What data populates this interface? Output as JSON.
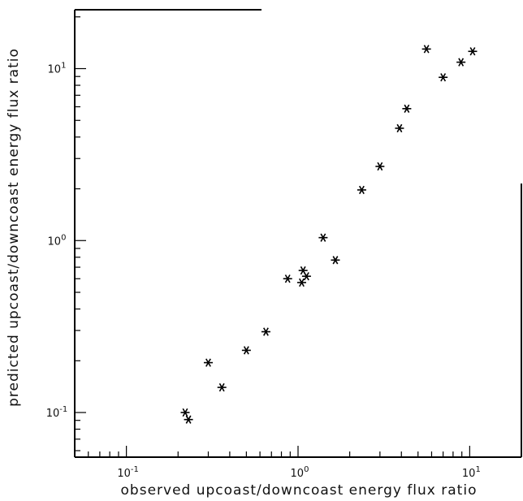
{
  "chart_data": {
    "type": "scatter",
    "xscale": "log",
    "yscale": "log",
    "xlim": [
      0.05,
      20
    ],
    "ylim": [
      0.055,
      22
    ],
    "xlabel": "observed upcoast/downcoast energy flux ratio",
    "ylabel": "predicted upcoast/downcoast energy flux ratio",
    "grid": false,
    "marker": "asterisk",
    "x_ticks": [
      {
        "value": 0.1,
        "base": "10",
        "exp": "-1"
      },
      {
        "value": 1,
        "base": "10",
        "exp": "0"
      },
      {
        "value": 10,
        "base": "10",
        "exp": "1"
      }
    ],
    "y_ticks": [
      {
        "value": 0.1,
        "base": "10",
        "exp": "-1"
      },
      {
        "value": 1,
        "base": "10",
        "exp": "0"
      },
      {
        "value": 10,
        "base": "10",
        "exp": "1"
      }
    ],
    "points": [
      {
        "x": 0.22,
        "y": 0.1
      },
      {
        "x": 0.23,
        "y": 0.091
      },
      {
        "x": 0.3,
        "y": 0.195
      },
      {
        "x": 0.36,
        "y": 0.14
      },
      {
        "x": 0.5,
        "y": 0.23
      },
      {
        "x": 0.65,
        "y": 0.295
      },
      {
        "x": 0.87,
        "y": 0.6
      },
      {
        "x": 1.05,
        "y": 0.57
      },
      {
        "x": 1.07,
        "y": 0.67
      },
      {
        "x": 1.12,
        "y": 0.62
      },
      {
        "x": 1.4,
        "y": 1.04
      },
      {
        "x": 1.65,
        "y": 0.77
      },
      {
        "x": 2.35,
        "y": 1.97
      },
      {
        "x": 3.0,
        "y": 2.7
      },
      {
        "x": 3.9,
        "y": 4.5
      },
      {
        "x": 4.3,
        "y": 5.85
      },
      {
        "x": 5.6,
        "y": 13.0
      },
      {
        "x": 7.0,
        "y": 8.9
      },
      {
        "x": 8.9,
        "y": 10.9
      },
      {
        "x": 10.4,
        "y": 12.6
      }
    ]
  }
}
